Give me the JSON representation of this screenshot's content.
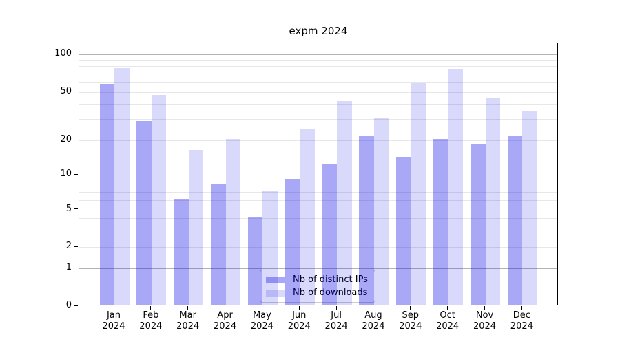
{
  "chart_data": {
    "type": "bar",
    "title": "expm 2024",
    "categories": [
      "Jan",
      "Feb",
      "Mar",
      "Apr",
      "May",
      "Jun",
      "Jul",
      "Aug",
      "Sep",
      "Oct",
      "Nov",
      "Dec"
    ],
    "x_year_label": "2024",
    "series": [
      {
        "name": "Nb of distinct IPs",
        "color": "#a8a8f6",
        "rgba": "rgba(0,0,230,0.34)",
        "values": [
          57,
          28,
          6,
          8,
          4,
          9,
          12,
          21,
          14,
          20,
          18,
          21
        ]
      },
      {
        "name": "Nb of downloads",
        "color": "#d9d9fb",
        "rgba": "rgba(0,0,230,0.15)",
        "values": [
          76,
          46,
          16,
          20,
          7,
          24,
          41,
          30,
          58,
          75,
          44,
          34
        ]
      }
    ],
    "y_axis": {
      "scale": "symlog",
      "ticks": [
        0,
        1,
        2,
        5,
        10,
        20,
        50,
        100
      ],
      "major_gridlines": [
        1,
        10,
        100
      ],
      "minor_gridlines": [
        2,
        3,
        4,
        6,
        7,
        8,
        9,
        20,
        30,
        40,
        50,
        60,
        70,
        80,
        90
      ],
      "ylim": [
        0,
        130
      ]
    },
    "grid": {
      "major_color": "#b3b3b3",
      "minor_color": "#e7e7e7"
    },
    "legend": {
      "location": "lower center",
      "entries": [
        "Nb of distinct IPs",
        "Nb of downloads"
      ]
    },
    "axis_color": "#000000",
    "background_color": "#ffffff"
  }
}
